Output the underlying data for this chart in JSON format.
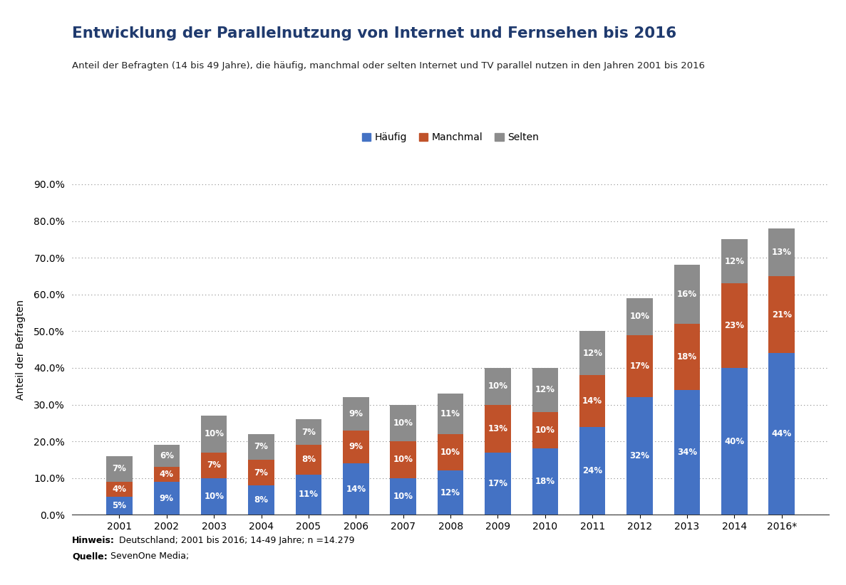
{
  "years": [
    "2001",
    "2002",
    "2003",
    "2004",
    "2005",
    "2006",
    "2007",
    "2008",
    "2009",
    "2010",
    "2011",
    "2012",
    "2013",
    "2014",
    "2016*"
  ],
  "haeufig": [
    5,
    9,
    10,
    8,
    11,
    14,
    10,
    12,
    17,
    18,
    24,
    32,
    34,
    40,
    44
  ],
  "manchmal": [
    4,
    4,
    7,
    7,
    8,
    9,
    10,
    10,
    13,
    10,
    14,
    17,
    18,
    23,
    21
  ],
  "selten": [
    7,
    6,
    10,
    7,
    7,
    9,
    10,
    11,
    10,
    12,
    12,
    10,
    16,
    12,
    13
  ],
  "color_haeufig": "#4472C4",
  "color_manchmal": "#C0522A",
  "color_selten": "#8C8C8C",
  "title": "Entwicklung der Parallelnutzung von Internet und Fernsehen bis 2016",
  "subtitle": "Anteil der Befragten (14 bis 49 Jahre), die häufig, manchmal oder selten Internet und TV parallel nutzen in den Jahren 2001 bis 2016",
  "ylabel": "Anteil der Befragten",
  "legend_labels": [
    "Häufig",
    "Manchmal",
    "Selten"
  ],
  "footnote_bold": "Hinweis:",
  "footnote_text": " Deutschland; 2001 bis 2016; 14-49 Jahre; n =14.279",
  "source_bold": "Quelle:",
  "source_text": " SevenOne Media;",
  "ylim": [
    0,
    90
  ],
  "yticks": [
    0,
    10,
    20,
    30,
    40,
    50,
    60,
    70,
    80,
    90
  ],
  "header_color": "#1F3A6E",
  "title_color": "#1F3A6E",
  "bar_width": 0.55
}
